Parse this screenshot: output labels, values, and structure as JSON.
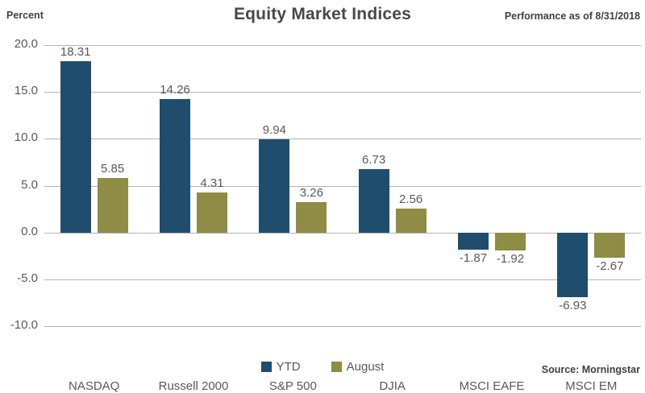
{
  "header": {
    "axis_title": "Percent",
    "title": "Equity Market Indices",
    "performance_note": "Performance as of 8/31/2018"
  },
  "footer": {
    "source": "Source: Morningstar"
  },
  "legend": {
    "ytd_label": "YTD",
    "august_label": "August"
  },
  "colors": {
    "ytd": "#1F4D6E",
    "august": "#8E8C45",
    "gridline": "#B3B3B3",
    "text_gray": "#595959",
    "title_gray": "#484848"
  },
  "chart_data": {
    "type": "bar",
    "title": "Equity Market Indices",
    "ylabel": "Percent",
    "xlabel": "",
    "ylim": [
      -10,
      20
    ],
    "ytick_interval": 5,
    "yticks": [
      20.0,
      15.0,
      10.0,
      5.0,
      0.0,
      -5.0,
      -10.0
    ],
    "grid": true,
    "legend_position": "bottom-center",
    "value_labels": true,
    "categories": [
      "NASDAQ",
      "Russell 2000",
      "S&P 500",
      "DJIA",
      "MSCI EAFE",
      "MSCI EM"
    ],
    "series": [
      {
        "name": "YTD",
        "color": "#1F4D6E",
        "values": [
          18.31,
          14.26,
          9.94,
          6.73,
          -1.87,
          -6.93
        ]
      },
      {
        "name": "August",
        "color": "#8E8C45",
        "values": [
          5.85,
          4.31,
          3.26,
          2.56,
          -1.92,
          -2.67
        ]
      }
    ]
  }
}
